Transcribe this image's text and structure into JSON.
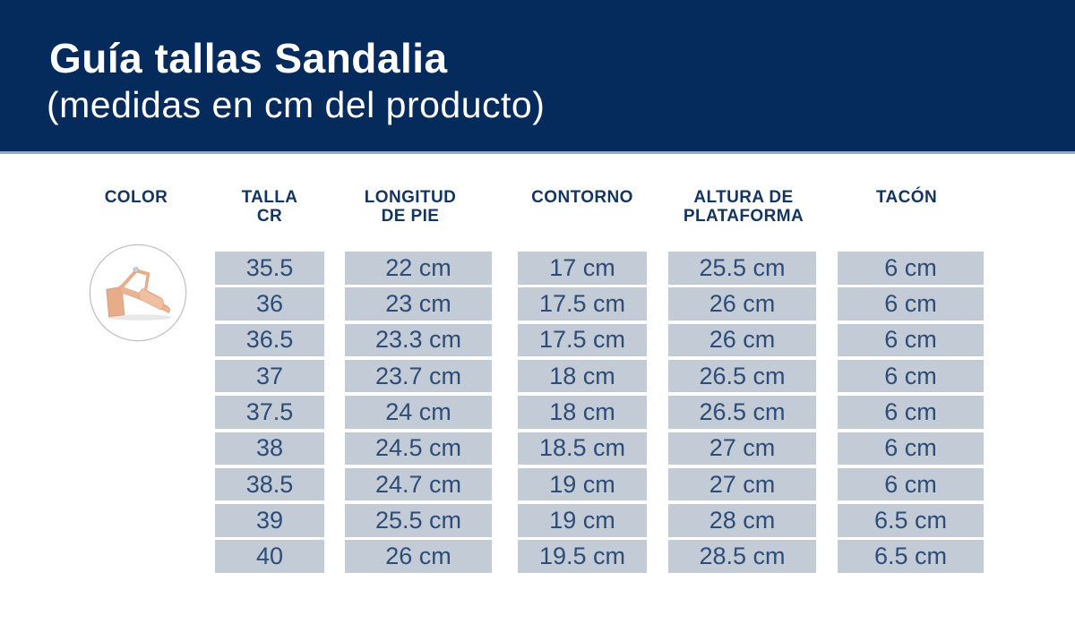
{
  "header": {
    "title": "Guía tallas Sandalia",
    "subtitle": "(medidas en cm del producto)"
  },
  "table": {
    "column_labels": [
      "COLOR",
      "TALLA\nCR",
      "LONGITUD\nDE PIE",
      "CONTORNO",
      "ALTURA DE\nPLATAFORMA",
      "TACÓN"
    ]
  },
  "product": {
    "photo": "nude-block-heel-sandal",
    "shoe_color": "#e9b091"
  },
  "colors": {
    "header_bg": "#052a5c",
    "header_text": "#ffffff",
    "column_header_text": "#14355f",
    "cell_bg": "#c2cbd6",
    "cell_text": "#2d4c77",
    "band_separator": "#96a9c2"
  },
  "chart_data": {
    "type": "table",
    "title": "Guía tallas Sandalia",
    "subtitle": "(medidas en cm del producto)",
    "columns": [
      "TALLA CR",
      "LONGITUD DE PIE",
      "CONTORNO",
      "ALTURA DE PLATAFORMA",
      "TACÓN"
    ],
    "rows": [
      [
        "35.5",
        "22 cm",
        "17 cm",
        "25.5 cm",
        "6 cm"
      ],
      [
        "36",
        "23 cm",
        "17.5 cm",
        "26 cm",
        "6 cm"
      ],
      [
        "36.5",
        "23.3 cm",
        "17.5 cm",
        "26 cm",
        "6 cm"
      ],
      [
        "37",
        "23.7 cm",
        "18 cm",
        "26.5 cm",
        "6 cm"
      ],
      [
        "37.5",
        "24 cm",
        "18 cm",
        "26.5 cm",
        "6 cm"
      ],
      [
        "38",
        "24.5 cm",
        "18.5 cm",
        "27 cm",
        "6 cm"
      ],
      [
        "38.5",
        "24.7 cm",
        "19 cm",
        "27 cm",
        "6 cm"
      ],
      [
        "39",
        "25.5 cm",
        "19 cm",
        "28 cm",
        "6.5 cm"
      ],
      [
        "40",
        "26 cm",
        "19.5 cm",
        "28.5 cm",
        "6.5 cm"
      ]
    ]
  }
}
